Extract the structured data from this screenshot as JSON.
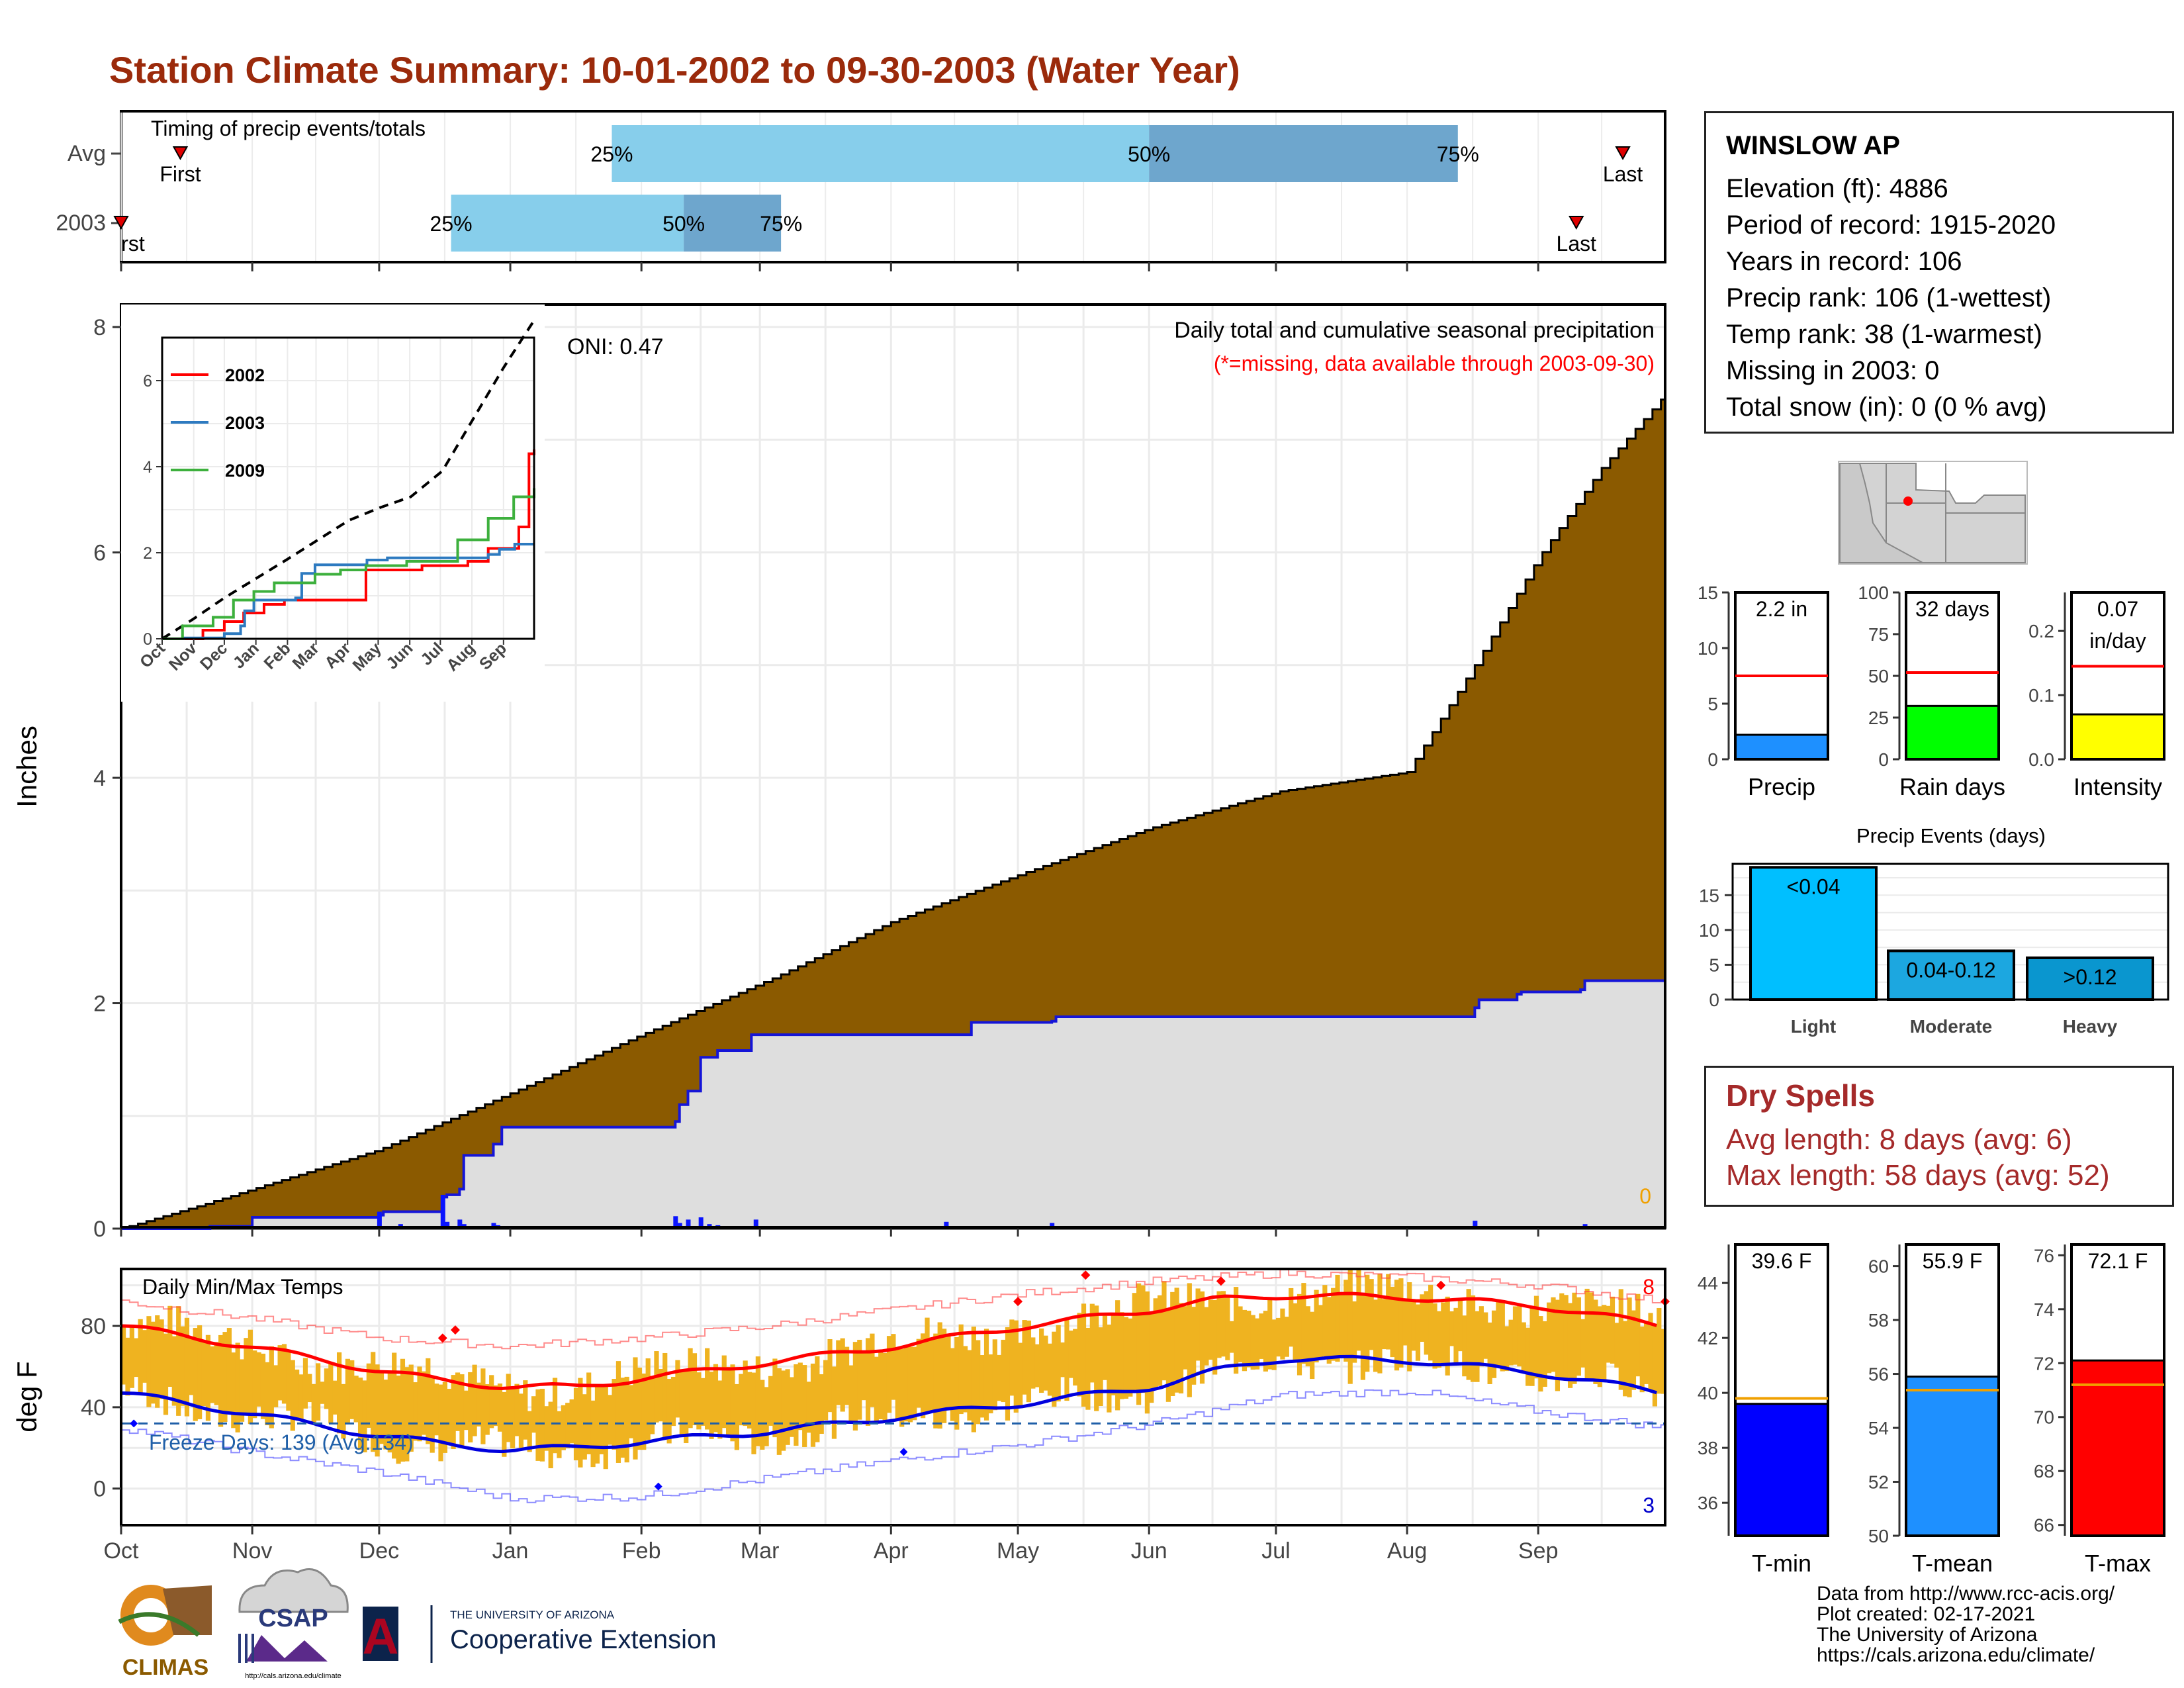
{
  "title": "Station Climate Summary: 10-01-2002 to 09-30-2003 (Water Year)",
  "colors": {
    "title": "#9b2a0b",
    "accumulation": "#8b5a00",
    "cumulative_fill": "#dedede",
    "blue_line": "#1515d8",
    "light_blue": "#87ceeb",
    "mid_blue": "#6ea6cd",
    "temp_bars": "#efb320",
    "red": "#ff0000",
    "dry_spells": "#a52a2a"
  },
  "timing": {
    "label": "Timing of precip events/totals",
    "rows": [
      "Avg",
      "2003"
    ],
    "first_label": "First",
    "last_label": "Last",
    "first_label_clipped": "rst",
    "pct_labels": [
      "25%",
      "50%",
      "75%"
    ]
  },
  "station": {
    "name": "WINSLOW AP",
    "lines": [
      "Elevation (ft): 4886",
      "Period of record: 1915-2020",
      "Years in record: 106",
      "Precip rank: 106 (1-wettest)",
      "Temp rank: 38 (1-warmest)",
      "Missing in 2003: 0",
      "Total snow (in): 0 (0 % avg)"
    ]
  },
  "precip_panel": {
    "title": "Daily total and cumulative seasonal precipitation",
    "missing_note": "(*=missing, data available through 2003-09-30)",
    "oni": "ONI: 0.47",
    "ylabel": "Inches",
    "yticks": [
      "0",
      "2",
      "4",
      "6",
      "8"
    ],
    "corner_value": "0"
  },
  "inset": {
    "legend": [
      "2002",
      "2003",
      "2009"
    ],
    "yticks": [
      "0",
      "2",
      "4",
      "6"
    ],
    "xticks": [
      "Oct",
      "Nov",
      "Dec",
      "Jan",
      "Feb",
      "Mar",
      "Apr",
      "May",
      "Jun",
      "Jul",
      "Aug",
      "Sep"
    ]
  },
  "temp_panel": {
    "title": "Daily Min/Max Temps",
    "ylabel": "deg F",
    "yticks": [
      "0",
      "40",
      "80"
    ],
    "freeze": "Freeze Days: 139 (Avg:134)",
    "record_high_count": "8",
    "record_low_count": "3"
  },
  "months": [
    "Oct",
    "Nov",
    "Dec",
    "Jan",
    "Feb",
    "Mar",
    "Apr",
    "May",
    "Jun",
    "Jul",
    "Aug",
    "Sep"
  ],
  "gauges": {
    "precip": {
      "label": "Precip",
      "value_label": "2.2 in",
      "yticks": [
        "0",
        "5",
        "10",
        "15"
      ]
    },
    "rain_days": {
      "label": "Rain days",
      "value_label": "32 days",
      "yticks": [
        "0",
        "25",
        "50",
        "75",
        "100"
      ]
    },
    "intensity": {
      "label": "Intensity",
      "value_label_1": "0.07",
      "value_label_2": "in/day",
      "yticks": [
        "0.0",
        "0.1",
        "0.2"
      ]
    }
  },
  "events": {
    "title": "Precip Events (days)",
    "categories": [
      "Light",
      "Moderate",
      "Heavy"
    ],
    "bar_labels": [
      "<0.04",
      "0.04-0.12",
      ">0.12"
    ],
    "yticks": [
      "0",
      "5",
      "10",
      "15"
    ]
  },
  "dry_spells": {
    "title": "Dry Spells",
    "lines": [
      "Avg length: 8 days (avg: 6)",
      "Max length: 58 days (avg: 52)"
    ]
  },
  "temp_gauges": {
    "tmin": {
      "label": "T-min",
      "value_label": "39.6 F",
      "yticks": [
        "36",
        "38",
        "40",
        "42",
        "44"
      ]
    },
    "tmean": {
      "label": "T-mean",
      "value_label": "55.9 F",
      "yticks": [
        "50",
        "52",
        "54",
        "56",
        "58",
        "60"
      ]
    },
    "tmax": {
      "label": "T-max",
      "value_label": "72.1 F",
      "yticks": [
        "66",
        "68",
        "70",
        "72",
        "74",
        "76"
      ]
    }
  },
  "credits": [
    "Data from http://www.rcc-acis.org/",
    "Plot created: 02-17-2021",
    "The University of Arizona",
    "https://cals.arizona.edu/climate/"
  ],
  "logos": {
    "climas": "CLIMAS",
    "csap": "CSAP",
    "csap_url": "http://cals.arizona.edu/climate",
    "ua_line1": "THE UNIVERSITY OF ARIZONA",
    "ua_line2": "Cooperative Extension",
    "ua_letter": "A"
  },
  "chart_data": [
    {
      "type": "bar",
      "name": "timing",
      "series": [
        {
          "name": "Avg",
          "first_day": 14,
          "p25": 116,
          "p50": 243,
          "p75": 316,
          "last_day": 355
        },
        {
          "name": "2003",
          "first_day": 0,
          "p25": 78,
          "p50": 133,
          "p75": 156,
          "last_day": 344
        }
      ]
    },
    {
      "type": "area",
      "name": "cumulative_precip",
      "x_unit": "day of water year",
      "ylim": [
        0,
        8.2
      ],
      "average_cumulative": {
        "x": [
          0,
          20,
          61,
          92,
          123,
          154,
          182,
          213,
          243,
          274,
          304,
          320,
          335,
          350,
          365
        ],
        "y": [
          0,
          0.22,
          0.7,
          1.2,
          1.72,
          2.22,
          2.72,
          3.15,
          3.55,
          3.88,
          4.05,
          5.0,
          5.95,
          6.75,
          7.4
        ]
      },
      "season_2003_cumulative": {
        "x": [
          0,
          21,
          31,
          61,
          62,
          76,
          77,
          80,
          81,
          88,
          90,
          131,
          132,
          134,
          137,
          141,
          149,
          150,
          200,
          201,
          220,
          221,
          320,
          321,
          330,
          331,
          345,
          346,
          365
        ],
        "y": [
          0,
          0.02,
          0.1,
          0.12,
          0.15,
          0.28,
          0.3,
          0.35,
          0.65,
          0.75,
          0.9,
          0.95,
          1.1,
          1.22,
          1.52,
          1.58,
          1.72,
          1.72,
          1.72,
          1.83,
          1.84,
          1.88,
          1.96,
          2.03,
          2.08,
          2.1,
          2.12,
          2.2,
          2.2
        ]
      },
      "daily_totals": {
        "x": [
          21,
          37,
          61,
          66,
          76,
          77,
          80,
          81,
          88,
          89,
          90,
          95,
          101,
          131,
          132,
          134,
          137,
          139,
          141,
          143,
          150,
          174,
          195,
          220,
          320,
          331,
          346
        ],
        "y": [
          0.02,
          0.02,
          0.15,
          0.04,
          0.3,
          0.06,
          0.08,
          0.04,
          0.05,
          0.03,
          0.02,
          0.02,
          0.01,
          0.11,
          0.05,
          0.08,
          0.1,
          0.04,
          0.03,
          0.02,
          0.08,
          0.01,
          0.06,
          0.05,
          0.07,
          0.02,
          0.04
        ]
      }
    },
    {
      "type": "line",
      "name": "inset_cumulative",
      "ylim": [
        0,
        7
      ],
      "series": [
        {
          "name": "average",
          "x": [
            0,
            30,
            61,
            92,
            123,
            153,
            183,
            214,
            244,
            275,
            305,
            335,
            365
          ],
          "y": [
            0,
            0.45,
            0.95,
            1.4,
            1.85,
            2.3,
            2.75,
            3.05,
            3.3,
            3.9,
            5.1,
            6.3,
            7.4
          ]
        },
        {
          "name": "2002",
          "x": [
            0,
            40,
            61,
            80,
            100,
            120,
            140,
            190,
            200,
            255,
            300,
            320,
            350,
            360,
            365
          ],
          "y": [
            0,
            0.2,
            0.4,
            0.6,
            0.8,
            0.9,
            0.9,
            0.9,
            1.6,
            1.7,
            1.8,
            2.1,
            2.6,
            4.3,
            4.4
          ]
        },
        {
          "name": "2003",
          "x": [
            0,
            21,
            61,
            77,
            81,
            90,
            131,
            137,
            150,
            201,
            221,
            320,
            331,
            346,
            365
          ],
          "y": [
            0,
            0.02,
            0.12,
            0.3,
            0.65,
            0.9,
            0.95,
            1.52,
            1.72,
            1.83,
            1.88,
            1.96,
            2.08,
            2.2,
            2.2
          ]
        },
        {
          "name": "2009",
          "x": [
            0,
            20,
            50,
            70,
            90,
            110,
            150,
            175,
            200,
            240,
            290,
            320,
            345,
            365
          ],
          "y": [
            0,
            0.3,
            0.5,
            0.9,
            1.1,
            1.3,
            1.5,
            1.6,
            1.7,
            1.8,
            2.3,
            2.8,
            3.3,
            3.5
          ]
        }
      ]
    },
    {
      "type": "area",
      "name": "daily_temps",
      "ylim": [
        -18,
        108
      ],
      "average_max": {
        "x": [
          0,
          30,
          61,
          76,
          92,
          107,
          123,
          153,
          183,
          214,
          244,
          259,
          275,
          305,
          335,
          365
        ],
        "y": [
          80,
          70,
          58,
          53,
          50,
          50,
          54,
          62,
          70,
          80,
          88,
          93,
          95,
          94,
          90,
          80
        ]
      },
      "average_min": {
        "x": [
          0,
          30,
          61,
          76,
          92,
          107,
          123,
          153,
          183,
          214,
          244,
          259,
          275,
          305,
          335,
          365
        ],
        "y": [
          47,
          37,
          26,
          22,
          19,
          20,
          23,
          28,
          35,
          42,
          50,
          58,
          64,
          63,
          57,
          47
        ]
      },
      "record_max": {
        "x": [
          0,
          30,
          61,
          92,
          123,
          153,
          183,
          214,
          244,
          275,
          305,
          335,
          365
        ],
        "y": [
          92,
          84,
          74,
          70,
          74,
          80,
          88,
          96,
          102,
          106,
          104,
          100,
          92
        ]
      },
      "record_min": {
        "x": [
          0,
          30,
          61,
          92,
          123,
          153,
          183,
          214,
          244,
          275,
          305,
          335,
          365
        ],
        "y": [
          30,
          18,
          8,
          -5,
          -4,
          5,
          14,
          22,
          32,
          46,
          48,
          38,
          30
        ]
      },
      "freeze_line": 32
    },
    {
      "type": "bar",
      "name": "gauges",
      "categories": [
        "Precip",
        "Rain days",
        "Intensity"
      ],
      "values": [
        2.2,
        32,
        0.07
      ],
      "averages": [
        7.5,
        52,
        0.145
      ],
      "ylims": [
        [
          0,
          15
        ],
        [
          0,
          100
        ],
        [
          0,
          0.26
        ]
      ]
    },
    {
      "type": "bar",
      "name": "precip_events",
      "categories": [
        "Light",
        "Moderate",
        "Heavy"
      ],
      "values": [
        19,
        7,
        6
      ],
      "ylim": [
        0,
        19.5
      ]
    },
    {
      "type": "bar",
      "name": "temp_gauges",
      "categories": [
        "T-min",
        "T-mean",
        "T-max"
      ],
      "values": [
        39.6,
        55.9,
        72.1
      ],
      "averages": [
        39.8,
        55.4,
        71.2
      ],
      "ylims": [
        [
          34.8,
          45.4
        ],
        [
          50,
          60.8
        ],
        [
          65.6,
          76.4
        ]
      ]
    }
  ]
}
